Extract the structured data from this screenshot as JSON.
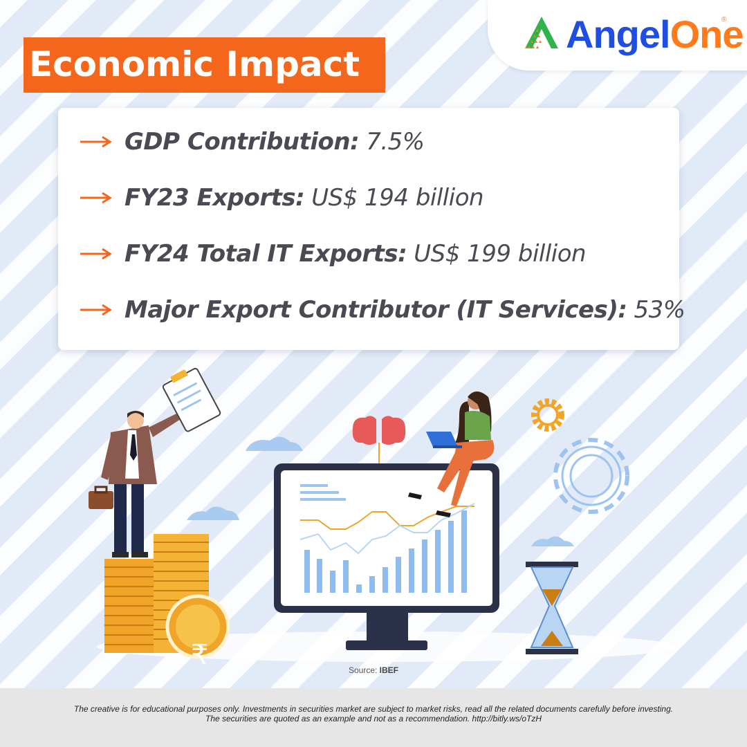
{
  "brand": {
    "name_part1": "Angel",
    "name_part2": "One",
    "registered": "®"
  },
  "title": "Economic Impact",
  "stats": [
    {
      "label": "GDP Contribution:",
      "value": "7.5%"
    },
    {
      "label": "FY23 Exports:",
      "value": "US$ 194 billion"
    },
    {
      "label": "FY24 Total IT Exports:",
      "value": "US$ 199 billion"
    },
    {
      "label": "Major Export Contributor (IT Services):",
      "value": "53%"
    }
  ],
  "source": {
    "prefix": "Source:",
    "name": "IBEF"
  },
  "disclaimer": {
    "line1": "The creative is for educational purposes only. Investments in securities market are subject to market risks, read all the related documents carefully before investing.",
    "line2": "The securities are quoted as an example and not as a recommendation. http://bitly.ws/oTzH"
  },
  "colors": {
    "accent": "#f4661b",
    "brand_blue": "#1f4fe0",
    "text": "#4a4a55"
  },
  "icons": [
    "angelone-logo-icon",
    "arrow-right-icon",
    "businessman-illustration",
    "coin-stack-illustration",
    "rupee-coin-icon",
    "monitor-chart-illustration",
    "brain-icon",
    "woman-laptop-illustration",
    "gear-icon",
    "hourglass-icon",
    "cloud-icon"
  ]
}
